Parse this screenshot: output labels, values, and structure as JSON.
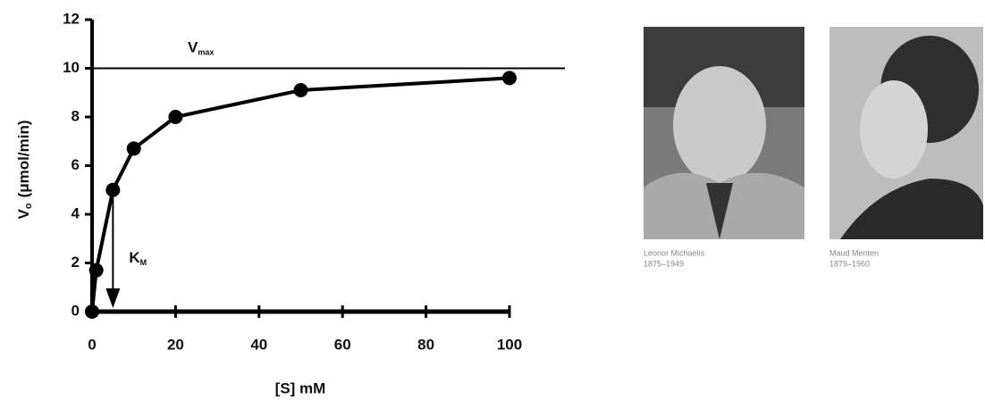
{
  "chart_data": {
    "type": "line",
    "x": [
      0,
      1,
      5,
      10,
      20,
      50,
      100
    ],
    "y": [
      0,
      1.7,
      5,
      6.7,
      8,
      9.1,
      9.6
    ],
    "color": "#000000",
    "xlim": [
      0,
      100
    ],
    "xticks": [
      0,
      20,
      40,
      60,
      80,
      100
    ],
    "ylim": [
      0,
      12
    ],
    "yticks": [
      0,
      2,
      4,
      6,
      8,
      10,
      12
    ],
    "xlabel": "[S]  mM",
    "ylabel": "V",
    "ylabel_sub": "o",
    "ylabel_unit": "(μmol/min)",
    "vmax": 10,
    "vmax_label": "V",
    "vmax_sub": "max",
    "km": 5,
    "km_label": "K",
    "km_sub": "M"
  },
  "photos": [
    {
      "name": "Leonor Michaelis",
      "years": "1875–1949"
    },
    {
      "name": "Maud Menten",
      "years": "1879–1960"
    }
  ]
}
